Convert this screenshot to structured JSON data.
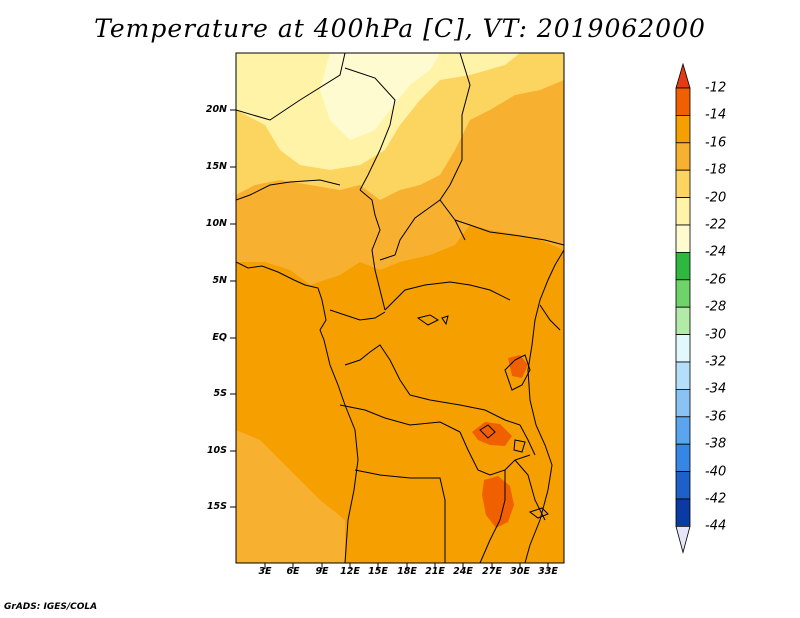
{
  "title": "Temperature at 400hPa [C], VT: 2019062000",
  "footer": "GrADS: IGES/COLA",
  "map": {
    "lat_labels": [
      "20N",
      "15N",
      "10N",
      "5N",
      "EQ",
      "5S",
      "10S",
      "15S"
    ],
    "lon_labels": [
      "3E",
      "6E",
      "9E",
      "12E",
      "15E",
      "18E",
      "21E",
      "24E",
      "27E",
      "30E",
      "33E"
    ]
  },
  "colorbar": {
    "labels": [
      "-12",
      "-14",
      "-16",
      "-18",
      "-20",
      "-22",
      "-24",
      "-26",
      "-28",
      "-30",
      "-32",
      "-34",
      "-36",
      "-38",
      "-40",
      "-42",
      "-44"
    ],
    "colors": [
      "#e33b14",
      "#f06000",
      "#f5a000",
      "#f8b030",
      "#fbd560",
      "#fff3a8",
      "#fffbd0",
      "#2fb83f",
      "#6fd26a",
      "#b2eaa8",
      "#e2f8ff",
      "#b5defa",
      "#8ac3f3",
      "#5ba4ee",
      "#3586e5",
      "#1e5fc9",
      "#0c3aa3",
      "#0a1a78",
      "#e6e6f8"
    ]
  },
  "chart_data": {
    "type": "heatmap",
    "title": "Temperature at 400hPa [C], VT: 2019062000",
    "xlabel": "",
    "ylabel": "",
    "x_ticks": [
      "3E",
      "6E",
      "9E",
      "12E",
      "15E",
      "18E",
      "21E",
      "24E",
      "27E",
      "30E",
      "33E"
    ],
    "y_ticks": [
      "20N",
      "15N",
      "10N",
      "5N",
      "EQ",
      "5S",
      "10S",
      "15S"
    ],
    "xlim": [
      0,
      34
    ],
    "ylim": [
      -20,
      25
    ],
    "colorbar_levels": [
      -44,
      -42,
      -40,
      -38,
      -36,
      -34,
      -32,
      -30,
      -28,
      -26,
      -24,
      -22,
      -20,
      -18,
      -16,
      -14,
      -12
    ],
    "units": "C"
  }
}
